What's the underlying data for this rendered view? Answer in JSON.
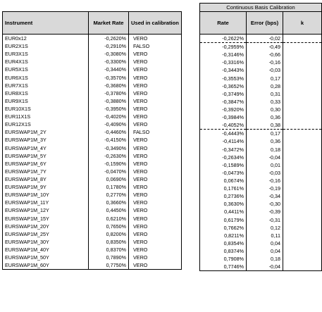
{
  "left_table": {
    "headers": {
      "instrument": "Instrument",
      "market_rate": "Market Rate",
      "used": "Used in calibration"
    },
    "rows": [
      [
        "EUR0x12",
        "-0,2620%",
        "VERO"
      ],
      [
        "EUR2X1S",
        "-0,2910%",
        "FALSO"
      ],
      [
        "EUR3X1S",
        "-0,3080%",
        "VERO"
      ],
      [
        "EUR4X1S",
        "-0,3300%",
        "VERO"
      ],
      [
        "EUR5X1S",
        "-0,3440%",
        "VERO"
      ],
      [
        "EUR6X1S",
        "-0,3570%",
        "VERO"
      ],
      [
        "EUR7X1S",
        "-0,3680%",
        "VERO"
      ],
      [
        "EUR8X1S",
        "-0,3780%",
        "VERO"
      ],
      [
        "EUR9X1S",
        "-0,3880%",
        "VERO"
      ],
      [
        "EUR10X1S",
        "-0,3950%",
        "VERO"
      ],
      [
        "EUR11X1S",
        "-0,4020%",
        "VERO"
      ],
      [
        "EUR12X1S",
        "-0,4090%",
        "VERO"
      ],
      [
        "EURSWAP1M_2Y",
        "-0,4460%",
        "FALSO"
      ],
      [
        "EURSWAP1M_3Y",
        "-0,4150%",
        "VERO"
      ],
      [
        "EURSWAP1M_4Y",
        "-0,3490%",
        "VERO"
      ],
      [
        "EURSWAP1M_5Y",
        "-0,2630%",
        "VERO"
      ],
      [
        "EURSWAP1M_6Y",
        "-0,1590%",
        "VERO"
      ],
      [
        "EURSWAP1M_7Y",
        "-0,0470%",
        "VERO"
      ],
      [
        "EURSWAP1M_8Y",
        "0,0690%",
        "VERO"
      ],
      [
        "EURSWAP1M_9Y",
        "0,1780%",
        "VERO"
      ],
      [
        "EURSWAP1M_10Y",
        "0,2770%",
        "VERO"
      ],
      [
        "EURSWAP1M_11Y",
        "0,3660%",
        "VERO"
      ],
      [
        "EURSWAP1M_12Y",
        "0,4450%",
        "VERO"
      ],
      [
        "EURSWAP1M_15Y",
        "0,6210%",
        "VERO"
      ],
      [
        "EURSWAP1M_20Y",
        "0,7650%",
        "VERO"
      ],
      [
        "EURSWAP1M_25Y",
        "0,8200%",
        "VERO"
      ],
      [
        "EURSWAP1M_30Y",
        "0,8350%",
        "VERO"
      ],
      [
        "EURSWAP1M_40Y",
        "0,8370%",
        "VERO"
      ],
      [
        "EURSWAP1M_50Y",
        "0,7890%",
        "VERO"
      ],
      [
        "EURSWAP1M_60Y",
        "0,7750%",
        "VERO"
      ]
    ]
  },
  "right_table": {
    "title": "Continuous Basis Calibration",
    "headers": {
      "rate": "Rate",
      "error": "Error (bps)",
      "k": "k"
    },
    "rows": [
      [
        "-0,2622%",
        "-0,02",
        ""
      ],
      [
        "-0,2959%",
        "-0,49",
        ""
      ],
      [
        "-0,3146%",
        "-0,66",
        ""
      ],
      [
        "-0,3316%",
        "-0,16",
        ""
      ],
      [
        "-0,3443%",
        "-0,03",
        ""
      ],
      [
        "-0,3553%",
        "0,17",
        ""
      ],
      [
        "-0,3652%",
        "0,28",
        ""
      ],
      [
        "-0,3749%",
        "0,31",
        ""
      ],
      [
        "-0,3847%",
        "0,33",
        ""
      ],
      [
        "-0,3920%",
        "0,30",
        ""
      ],
      [
        "-0,3984%",
        "0,36",
        ""
      ],
      [
        "-0,4052%",
        "0,38",
        ""
      ],
      [
        "-0,4443%",
        "0,17",
        ""
      ],
      [
        "-0,4114%",
        "0,36",
        ""
      ],
      [
        "-0,3472%",
        "0,18",
        ""
      ],
      [
        "-0,2634%",
        "-0,04",
        ""
      ],
      [
        "-0,1589%",
        "0,01",
        ""
      ],
      [
        "-0,0473%",
        "-0,03",
        ""
      ],
      [
        "0,0674%",
        "-0,16",
        ""
      ],
      [
        "0,1761%",
        "-0,19",
        ""
      ],
      [
        "0,2736%",
        "-0,34",
        ""
      ],
      [
        "0,3630%",
        "-0,30",
        ""
      ],
      [
        "0,4411%",
        "-0,39",
        ""
      ],
      [
        "0,6179%",
        "-0,31",
        ""
      ],
      [
        "0,7662%",
        "0,12",
        ""
      ],
      [
        "0,8211%",
        "0,11",
        ""
      ],
      [
        "0,8354%",
        "0,04",
        ""
      ],
      [
        "0,8374%",
        "0,04",
        ""
      ],
      [
        "0,7908%",
        "0,18",
        ""
      ],
      [
        "0,7746%",
        "-0,04",
        ""
      ]
    ],
    "dashed_after_rows": [
      0,
      11
    ]
  }
}
